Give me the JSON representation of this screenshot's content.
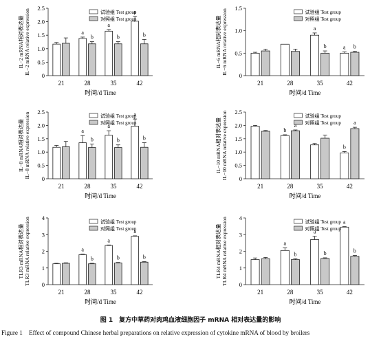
{
  "legend": {
    "test": "试验组 Test group",
    "control": "对照组 Test group"
  },
  "xlabel": "时间/d Time",
  "colors": {
    "test": "#ffffff",
    "control": "#c8c8c8",
    "stroke": "#222222"
  },
  "caption": {
    "cn": "图 1　复方中草药对肉鸡血液细胞因子 mRNA 相对表达量的影响",
    "en": "Figure 1　Effect of compound Chinese herbal preparations on relative expression of cytokine mRNA of blood by broilers"
  },
  "chart_data": [
    {
      "type": "bar",
      "ylabel": "IL−2 mRNA相对表达量\nIL−2 mRNA relative expression",
      "ylim": [
        0,
        2.5
      ],
      "yticks": [
        0,
        0.5,
        1.0,
        1.5,
        2.0,
        2.5
      ],
      "categories": [
        "21",
        "28",
        "35",
        "42"
      ],
      "series": [
        {
          "name": "试验组 Test group",
          "values": [
            1.17,
            1.38,
            1.65,
            2.02
          ],
          "errors": [
            0.06,
            0.05,
            0.06,
            0.18
          ],
          "labels": [
            "",
            "a",
            "a",
            "a"
          ]
        },
        {
          "name": "对照组 Test group",
          "values": [
            1.2,
            1.18,
            1.18,
            1.18
          ],
          "errors": [
            0.2,
            0.08,
            0.08,
            0.16
          ],
          "labels": [
            "",
            "b",
            "b",
            "b"
          ]
        }
      ]
    },
    {
      "type": "bar",
      "ylabel": "IL−6 mRNA相对表达量\nIL−6 mRNA relative expression",
      "ylim": [
        0,
        1.5
      ],
      "yticks": [
        0,
        0.5,
        1.0,
        1.5
      ],
      "categories": [
        "21",
        "28",
        "35",
        "42"
      ],
      "series": [
        {
          "name": "试验组 Test group",
          "values": [
            0.5,
            0.7,
            0.9,
            0.5
          ],
          "errors": [
            0.02,
            0.0,
            0.05,
            0.03
          ],
          "labels": [
            "",
            "",
            "a",
            "a"
          ]
        },
        {
          "name": "对照组 Test group",
          "values": [
            0.55,
            0.54,
            0.5,
            0.52
          ],
          "errors": [
            0.04,
            0.05,
            0.05,
            0.02
          ],
          "labels": [
            "",
            "",
            "b",
            "b"
          ]
        }
      ]
    },
    {
      "type": "bar",
      "ylabel": "IL−8 mRNA相对表达量\nIL−8 mRNA relative expression",
      "ylim": [
        0,
        2.5
      ],
      "yticks": [
        0,
        0.5,
        1.0,
        1.5,
        2.0,
        2.5
      ],
      "categories": [
        "21",
        "28",
        "35",
        "42"
      ],
      "series": [
        {
          "name": "试验组 Test group",
          "values": [
            1.18,
            1.35,
            1.63,
            1.97
          ],
          "errors": [
            0.07,
            0.27,
            0.17,
            0.27
          ],
          "labels": [
            "",
            "a",
            "a",
            "a"
          ]
        },
        {
          "name": "对照组 Test group",
          "values": [
            1.2,
            1.17,
            1.17,
            1.18
          ],
          "errors": [
            0.2,
            0.13,
            0.1,
            0.17
          ],
          "labels": [
            "",
            "b",
            "b",
            "b"
          ]
        }
      ]
    },
    {
      "type": "bar",
      "ylabel": "IL−10 mRNA相对表达量\nIL−10 mRNA relative expression",
      "ylim": [
        0,
        2.5
      ],
      "yticks": [
        0,
        0.5,
        1.0,
        1.5,
        2.0,
        2.5
      ],
      "categories": [
        "21",
        "28",
        "35",
        "42"
      ],
      "series": [
        {
          "name": "试验组 Test group",
          "values": [
            1.97,
            1.62,
            1.27,
            0.97
          ],
          "errors": [
            0.03,
            0.03,
            0.05,
            0.05
          ],
          "labels": [
            "",
            "b",
            "",
            "b"
          ]
        },
        {
          "name": "对照组 Test group",
          "values": [
            1.78,
            1.8,
            1.52,
            1.88
          ],
          "errors": [
            0.03,
            0.03,
            0.12,
            0.05
          ],
          "labels": [
            "",
            "a",
            "",
            "a"
          ]
        }
      ]
    },
    {
      "type": "bar",
      "ylabel": "TLR3 mRNA相对表达量\nTLR3 mRNA relative expression",
      "ylim": [
        0,
        4
      ],
      "yticks": [
        0,
        1,
        2,
        3,
        4
      ],
      "categories": [
        "21",
        "28",
        "35",
        "42"
      ],
      "series": [
        {
          "name": "试验组 Test group",
          "values": [
            1.25,
            1.8,
            2.35,
            2.9
          ],
          "errors": [
            0.03,
            0.03,
            0.03,
            0.03
          ],
          "labels": [
            "",
            "a",
            "a",
            "a"
          ]
        },
        {
          "name": "对照组 Test group",
          "values": [
            1.28,
            1.25,
            1.3,
            1.35
          ],
          "errors": [
            0.03,
            0.03,
            0.03,
            0.03
          ],
          "labels": [
            "",
            "b",
            "b",
            "b"
          ]
        }
      ]
    },
    {
      "type": "bar",
      "ylabel": "TLR4 mRNA相对表达量\nTLR4 mRNA relative expression",
      "ylim": [
        0,
        4
      ],
      "yticks": [
        0,
        1,
        2,
        3,
        4
      ],
      "categories": [
        "21",
        "28",
        "35",
        "42"
      ],
      "series": [
        {
          "name": "试验组 Test group",
          "values": [
            1.5,
            2.05,
            2.7,
            3.45
          ],
          "errors": [
            0.1,
            0.15,
            0.2,
            0.03
          ],
          "labels": [
            "",
            "a",
            "a",
            "a"
          ]
        },
        {
          "name": "对照组 Test group",
          "values": [
            1.55,
            1.5,
            1.57,
            1.7
          ],
          "errors": [
            0.08,
            0.05,
            0.04,
            0.05
          ],
          "labels": [
            "",
            "b",
            "b",
            "b"
          ]
        }
      ]
    }
  ]
}
